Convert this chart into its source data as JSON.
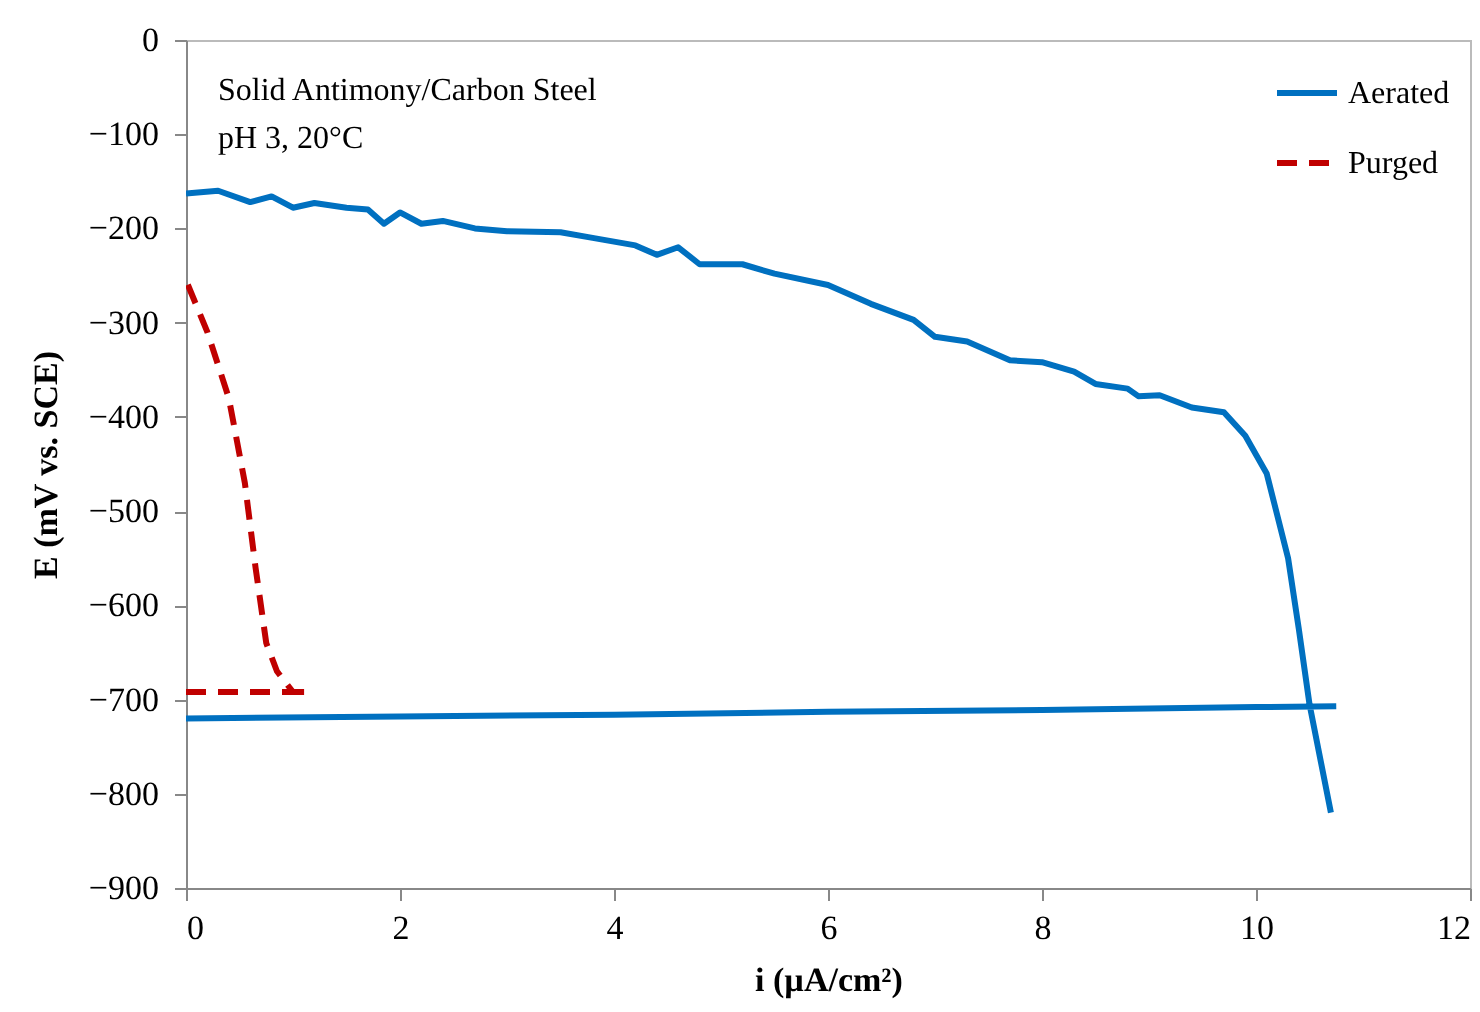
{
  "chart_data": {
    "type": "line",
    "xlabel": "i (µA/cm²)",
    "ylabel": "E (mV vs. SCE)",
    "annotations": [
      "Solid Antimony/Carbon Steel",
      "pH 3, 20°C"
    ],
    "xlim": [
      0,
      12
    ],
    "ylim": [
      -900,
      0
    ],
    "xticks": [
      0,
      2,
      4,
      6,
      8,
      10,
      12
    ],
    "yticks": [
      -900,
      -800,
      -700,
      -600,
      -500,
      -400,
      -300,
      -200,
      -100,
      0
    ],
    "grid": false,
    "legend": "top right",
    "marker": "none",
    "series": [
      {
        "name": "Aerated",
        "color": "#0070c0",
        "line_style": "solid",
        "x": [
          0,
          0.3,
          0.6,
          0.8,
          1.0,
          1.2,
          1.5,
          1.7,
          1.85,
          2.0,
          2.2,
          2.4,
          2.7,
          3.0,
          3.5,
          3.8,
          4.2,
          4.4,
          4.6,
          4.8,
          5.2,
          5.5,
          6.0,
          6.4,
          6.8,
          7.0,
          7.3,
          7.7,
          8.0,
          8.3,
          8.5,
          8.8,
          8.9,
          9.1,
          9.4,
          9.7,
          9.9,
          10.1,
          10.3,
          10.4,
          10.5,
          10.7,
          null,
          0,
          2,
          4,
          6,
          8,
          10,
          10.75
        ],
        "values": [
          -163,
          -160,
          -172,
          -166,
          -178,
          -173,
          -178,
          -180,
          -195,
          -183,
          -195,
          -192,
          -200,
          -203,
          -204,
          -210,
          -218,
          -228,
          -220,
          -238,
          -238,
          -248,
          -260,
          -280,
          -297,
          -315,
          -320,
          -340,
          -342,
          -352,
          -365,
          -370,
          -378,
          -377,
          -390,
          -395,
          -420,
          -460,
          -550,
          -625,
          -705,
          -820,
          null,
          -720,
          -718,
          -716,
          -713,
          -711,
          -708,
          -707
        ]
      },
      {
        "name": "Purged",
        "color": "#c00000",
        "line_style": "dashed",
        "x": [
          0,
          1.15,
          1.0,
          0.85,
          0.75,
          0.65,
          0.55,
          0.4,
          0.2,
          0
        ],
        "values": [
          -692,
          -692,
          -692,
          -670,
          -640,
          -560,
          -470,
          -380,
          -310,
          -255
        ]
      }
    ]
  }
}
